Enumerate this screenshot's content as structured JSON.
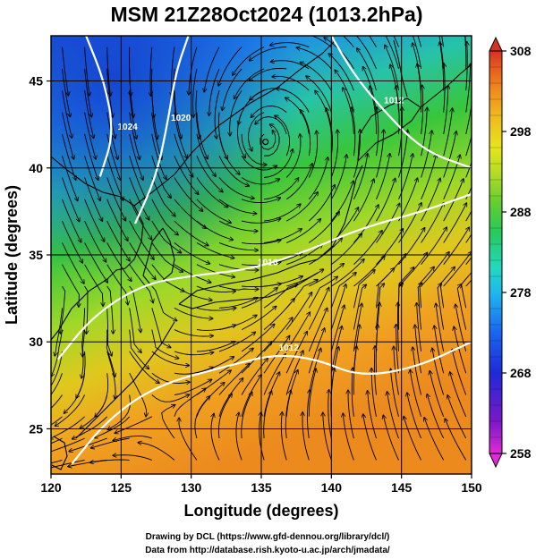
{
  "title": "MSM 21Z28Oct2024 (1013.2hPa)",
  "x_axis": {
    "label": "Longitude (degrees)",
    "range": [
      120,
      150
    ],
    "ticks": [
      120,
      125,
      130,
      135,
      140,
      145,
      150
    ]
  },
  "y_axis": {
    "label": "Latitude  (degrees)",
    "range": [
      22.4,
      47.6
    ],
    "ticks": [
      25,
      30,
      35,
      40,
      45
    ]
  },
  "colorbar": {
    "range": [
      258,
      308
    ],
    "ticks": [
      258,
      268,
      278,
      288,
      298,
      308
    ],
    "colors": [
      "#e02ad6",
      "#5a12c8",
      "#1e2ad8",
      "#1a66f0",
      "#1fb8ee",
      "#23d8c0",
      "#27c95a",
      "#3fc43a",
      "#9ad828",
      "#e6e41e",
      "#f0b81e",
      "#f08c1e",
      "#e65a1e",
      "#d63224"
    ]
  },
  "isobars": [
    {
      "label": "1012",
      "points": [
        [
          121.5,
          23.0
        ],
        [
          124.0,
          25.5
        ],
        [
          127.5,
          27.5
        ],
        [
          132.5,
          28.6
        ],
        [
          136.0,
          29.3
        ],
        [
          139.0,
          29.0
        ],
        [
          142.0,
          28.0
        ],
        [
          146.0,
          28.5
        ],
        [
          150.0,
          30.0
        ]
      ]
    },
    {
      "label": "1016",
      "points": [
        [
          120.5,
          29.0
        ],
        [
          123.0,
          31.5
        ],
        [
          126.5,
          33.3
        ],
        [
          130.0,
          33.8
        ],
        [
          134.5,
          34.2
        ],
        [
          138.5,
          35.3
        ],
        [
          142.0,
          36.5
        ],
        [
          146.5,
          37.5
        ],
        [
          150.0,
          38.5
        ]
      ]
    },
    {
      "label": "1020",
      "points": [
        [
          126.0,
          36.8
        ],
        [
          127.5,
          39.5
        ],
        [
          128.3,
          42.5
        ],
        [
          128.9,
          45.5
        ],
        [
          129.8,
          47.6
        ]
      ]
    },
    {
      "label": "1024",
      "points": [
        [
          122.5,
          47.6
        ],
        [
          123.8,
          45.0
        ],
        [
          124.5,
          42.0
        ],
        [
          123.5,
          39.5
        ]
      ]
    },
    {
      "label": "1012",
      "points": [
        [
          140.0,
          47.6
        ],
        [
          141.5,
          45.5
        ],
        [
          143.5,
          43.5
        ],
        [
          146.5,
          41.0
        ],
        [
          150.0,
          40.0
        ]
      ]
    }
  ],
  "low_center": {
    "lon": 135.3,
    "lat": 41.5
  },
  "credits": {
    "line1": "Drawing by DCL (https://www.gfd-dennou.org/library/dcl/)",
    "line2": "Data from http://database.rish.kyoto-u.ac.jp/arch/jmadata/"
  }
}
